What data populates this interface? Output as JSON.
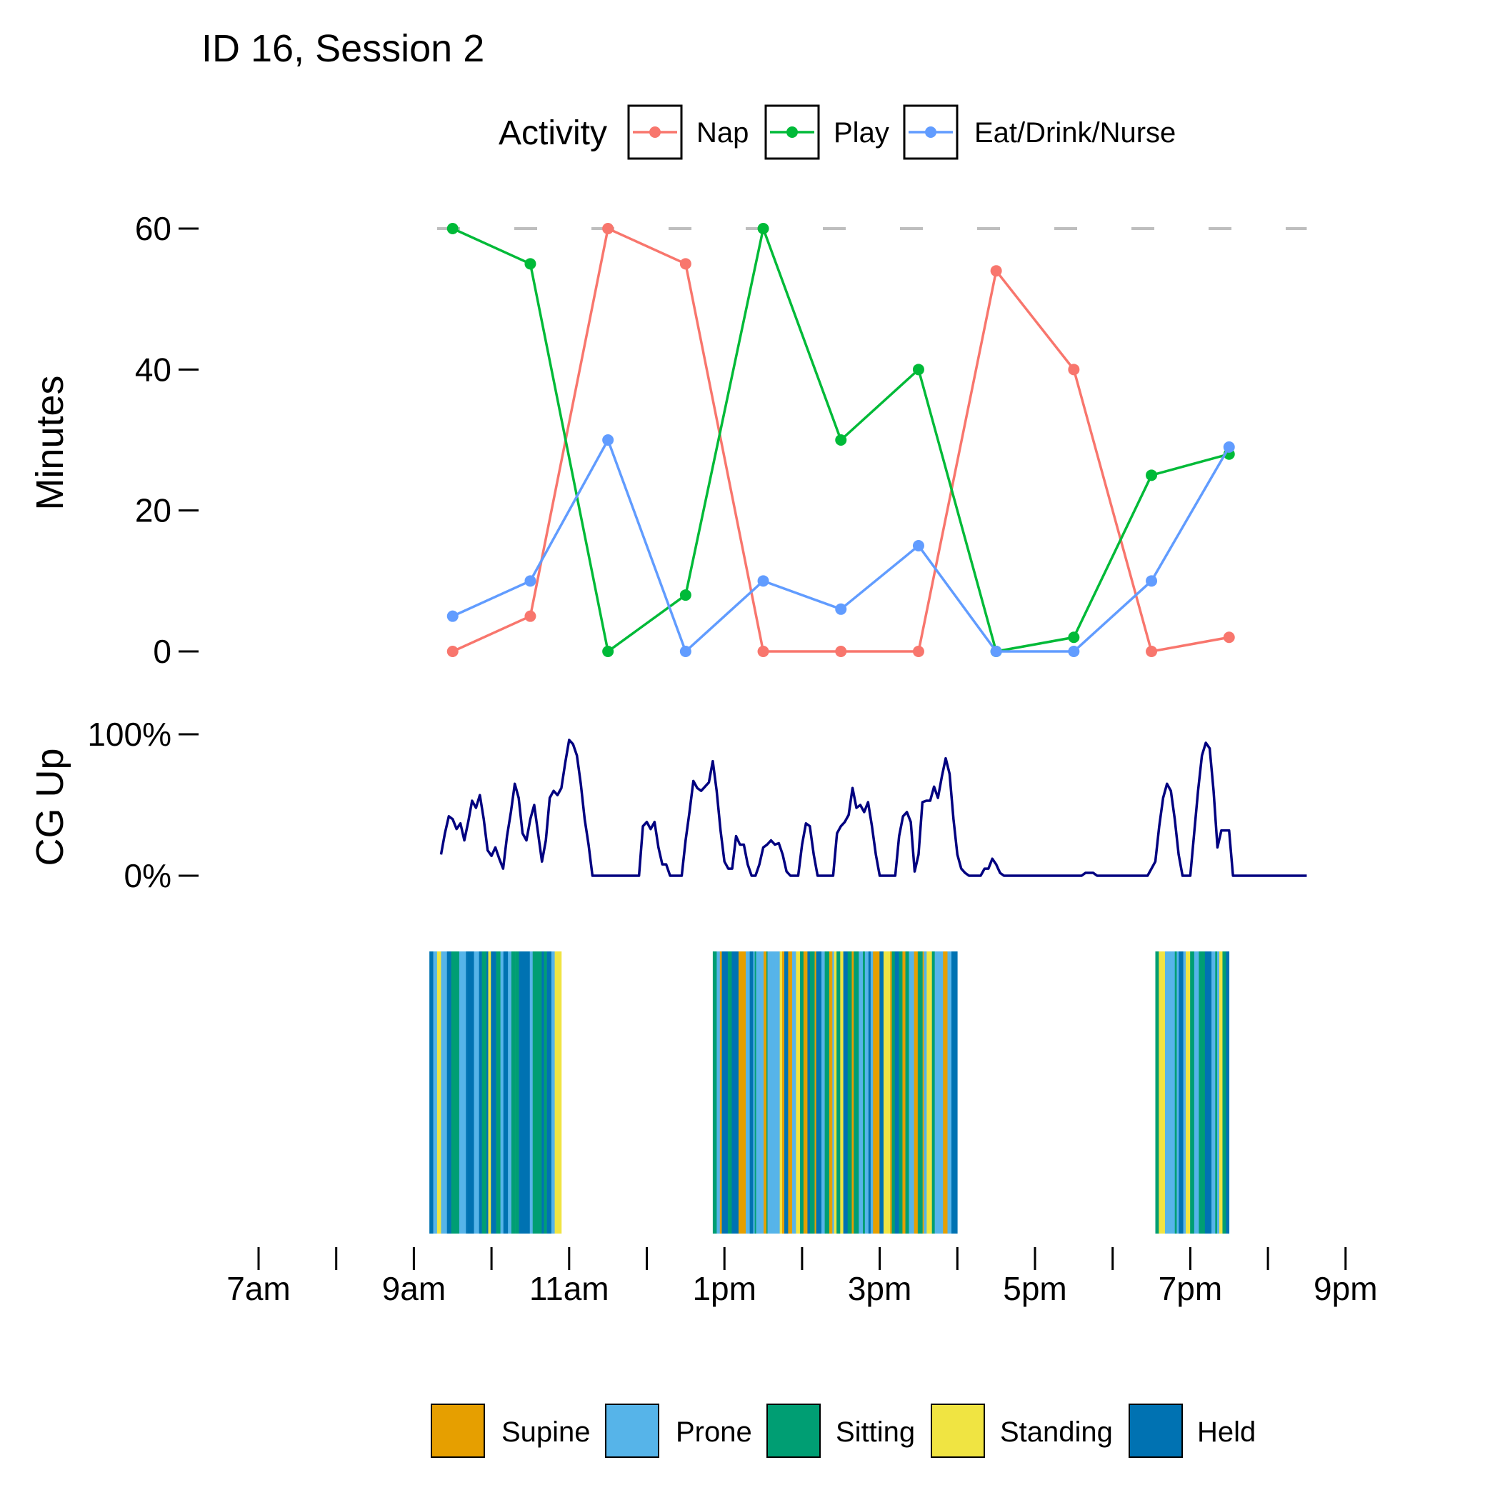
{
  "chart_data": [
    {
      "type": "line",
      "title": "ID 16, Session 2",
      "ylabel": "Minutes",
      "xlabel": "",
      "ylim": [
        0,
        60
      ],
      "yticks": [
        0,
        20,
        40,
        60
      ],
      "reference_line": 60,
      "legend_title": "Activity",
      "legend_placement": "top-center",
      "x_hours": [
        9.5,
        10.5,
        11.5,
        12.5,
        13.5,
        14.5,
        15.5,
        16.5,
        17.5,
        18.5,
        19.5
      ],
      "series": [
        {
          "name": "Nap",
          "color": "#F8766D",
          "values": [
            0,
            5,
            60,
            55,
            0,
            0,
            0,
            54,
            40,
            0,
            2
          ]
        },
        {
          "name": "Play",
          "color": "#00BA38",
          "values": [
            60,
            55,
            0,
            8,
            60,
            30,
            40,
            0,
            2,
            25,
            28
          ]
        },
        {
          "name": "Eat/Drink/Nurse",
          "color": "#619CFF",
          "values": [
            5,
            10,
            30,
            0,
            10,
            6,
            15,
            0,
            0,
            10,
            29
          ]
        }
      ]
    },
    {
      "type": "line",
      "ylabel": "CG Up",
      "yticks": [
        "0%",
        "100%"
      ],
      "ylim": [
        0,
        1
      ],
      "color": "#000080",
      "series": [
        {
          "name": "CG Up",
          "points": [
            [
              9.35,
              0.15
            ],
            [
              9.4,
              0.3
            ],
            [
              9.45,
              0.42
            ],
            [
              9.5,
              0.4
            ],
            [
              9.55,
              0.33
            ],
            [
              9.6,
              0.37
            ],
            [
              9.65,
              0.25
            ],
            [
              9.7,
              0.38
            ],
            [
              9.75,
              0.53
            ],
            [
              9.8,
              0.48
            ],
            [
              9.85,
              0.57
            ],
            [
              9.9,
              0.4
            ],
            [
              9.95,
              0.18
            ],
            [
              10.0,
              0.14
            ],
            [
              10.05,
              0.2
            ],
            [
              10.1,
              0.12
            ],
            [
              10.15,
              0.05
            ],
            [
              10.2,
              0.28
            ],
            [
              10.25,
              0.45
            ],
            [
              10.3,
              0.65
            ],
            [
              10.35,
              0.55
            ],
            [
              10.4,
              0.3
            ],
            [
              10.45,
              0.25
            ],
            [
              10.5,
              0.4
            ],
            [
              10.55,
              0.5
            ],
            [
              10.6,
              0.3
            ],
            [
              10.65,
              0.1
            ],
            [
              10.7,
              0.25
            ],
            [
              10.75,
              0.55
            ],
            [
              10.8,
              0.6
            ],
            [
              10.85,
              0.57
            ],
            [
              10.9,
              0.62
            ],
            [
              10.95,
              0.8
            ],
            [
              11.0,
              0.96
            ],
            [
              11.05,
              0.93
            ],
            [
              11.1,
              0.85
            ],
            [
              11.15,
              0.65
            ],
            [
              11.2,
              0.4
            ],
            [
              11.25,
              0.22
            ],
            [
              11.3,
              0.0
            ],
            [
              11.9,
              0.0
            ],
            [
              11.95,
              0.35
            ],
            [
              12.0,
              0.38
            ],
            [
              12.05,
              0.33
            ],
            [
              12.1,
              0.38
            ],
            [
              12.15,
              0.2
            ],
            [
              12.2,
              0.08
            ],
            [
              12.25,
              0.08
            ],
            [
              12.3,
              0.0
            ],
            [
              12.45,
              0.0
            ],
            [
              12.5,
              0.25
            ],
            [
              12.55,
              0.45
            ],
            [
              12.6,
              0.67
            ],
            [
              12.65,
              0.62
            ],
            [
              12.7,
              0.6
            ],
            [
              12.75,
              0.63
            ],
            [
              12.8,
              0.66
            ],
            [
              12.85,
              0.81
            ],
            [
              12.9,
              0.6
            ],
            [
              12.95,
              0.32
            ],
            [
              13.0,
              0.1
            ],
            [
              13.05,
              0.05
            ],
            [
              13.1,
              0.05
            ],
            [
              13.15,
              0.28
            ],
            [
              13.2,
              0.22
            ],
            [
              13.25,
              0.22
            ],
            [
              13.3,
              0.08
            ],
            [
              13.35,
              0.0
            ],
            [
              13.4,
              0.0
            ],
            [
              13.45,
              0.08
            ],
            [
              13.5,
              0.2
            ],
            [
              13.55,
              0.22
            ],
            [
              13.6,
              0.25
            ],
            [
              13.65,
              0.22
            ],
            [
              13.7,
              0.23
            ],
            [
              13.75,
              0.15
            ],
            [
              13.8,
              0.03
            ],
            [
              13.85,
              0.0
            ],
            [
              13.95,
              0.0
            ],
            [
              14.0,
              0.22
            ],
            [
              14.05,
              0.37
            ],
            [
              14.1,
              0.35
            ],
            [
              14.15,
              0.15
            ],
            [
              14.2,
              0.0
            ],
            [
              14.4,
              0.0
            ],
            [
              14.45,
              0.3
            ],
            [
              14.5,
              0.35
            ],
            [
              14.55,
              0.38
            ],
            [
              14.6,
              0.43
            ],
            [
              14.65,
              0.62
            ],
            [
              14.7,
              0.48
            ],
            [
              14.75,
              0.5
            ],
            [
              14.8,
              0.45
            ],
            [
              14.85,
              0.52
            ],
            [
              14.9,
              0.35
            ],
            [
              14.95,
              0.15
            ],
            [
              15.0,
              0.0
            ],
            [
              15.2,
              0.0
            ],
            [
              15.25,
              0.28
            ],
            [
              15.3,
              0.42
            ],
            [
              15.35,
              0.45
            ],
            [
              15.4,
              0.38
            ],
            [
              15.45,
              0.03
            ],
            [
              15.5,
              0.15
            ],
            [
              15.55,
              0.52
            ],
            [
              15.6,
              0.53
            ],
            [
              15.65,
              0.53
            ],
            [
              15.7,
              0.63
            ],
            [
              15.75,
              0.55
            ],
            [
              15.8,
              0.7
            ],
            [
              15.85,
              0.83
            ],
            [
              15.9,
              0.72
            ],
            [
              15.95,
              0.4
            ],
            [
              16.0,
              0.15
            ],
            [
              16.05,
              0.05
            ],
            [
              16.1,
              0.02
            ],
            [
              16.15,
              0.0
            ],
            [
              16.3,
              0.0
            ],
            [
              16.35,
              0.05
            ],
            [
              16.4,
              0.05
            ],
            [
              16.45,
              0.12
            ],
            [
              16.5,
              0.08
            ],
            [
              16.55,
              0.02
            ],
            [
              16.6,
              0.0
            ],
            [
              17.6,
              0.0
            ],
            [
              17.65,
              0.02
            ],
            [
              17.75,
              0.02
            ],
            [
              17.8,
              0.0
            ],
            [
              18.45,
              0.0
            ],
            [
              18.5,
              0.05
            ],
            [
              18.55,
              0.1
            ],
            [
              18.6,
              0.35
            ],
            [
              18.65,
              0.55
            ],
            [
              18.7,
              0.65
            ],
            [
              18.75,
              0.6
            ],
            [
              18.8,
              0.4
            ],
            [
              18.85,
              0.15
            ],
            [
              18.9,
              0.0
            ],
            [
              19.0,
              0.0
            ],
            [
              19.05,
              0.3
            ],
            [
              19.1,
              0.6
            ],
            [
              19.15,
              0.85
            ],
            [
              19.2,
              0.94
            ],
            [
              19.25,
              0.9
            ],
            [
              19.3,
              0.6
            ],
            [
              19.35,
              0.2
            ],
            [
              19.4,
              0.32
            ],
            [
              19.45,
              0.32
            ],
            [
              19.5,
              0.32
            ],
            [
              19.55,
              0.0
            ],
            [
              20.5,
              0.0
            ]
          ]
        }
      ]
    },
    {
      "type": "barcode",
      "legend_placement": "bottom-center",
      "categories": [
        "Supine",
        "Prone",
        "Sitting",
        "Standing",
        "Held"
      ],
      "colors": {
        "Supine": "#E69F00",
        "Prone": "#56B4E9",
        "Sitting": "#009E73",
        "Standing": "#F0E442",
        "Held": "#0072B2"
      },
      "segments": [
        {
          "start": 9.2,
          "end": 10.9,
          "mix": [
            "Sitting",
            "Held",
            "Standing",
            "Prone"
          ]
        },
        {
          "start": 12.85,
          "end": 16.0,
          "mix": [
            "Standing",
            "Sitting",
            "Supine",
            "Held",
            "Prone"
          ]
        },
        {
          "start": 18.55,
          "end": 19.5,
          "mix": [
            "Sitting",
            "Held",
            "Standing",
            "Prone"
          ]
        }
      ]
    }
  ],
  "x_axis": {
    "tick_hours": [
      7,
      8,
      9,
      10,
      11,
      12,
      13,
      14,
      15,
      16,
      17,
      18,
      19,
      20,
      21
    ],
    "labeled_ticks": [
      {
        "hour": 7,
        "label": "7am"
      },
      {
        "hour": 9,
        "label": "9am"
      },
      {
        "hour": 11,
        "label": "11am"
      },
      {
        "hour": 13,
        "label": "1pm"
      },
      {
        "hour": 15,
        "label": "3pm"
      },
      {
        "hour": 17,
        "label": "5pm"
      },
      {
        "hour": 19,
        "label": "7pm"
      },
      {
        "hour": 21,
        "label": "9pm"
      }
    ]
  }
}
